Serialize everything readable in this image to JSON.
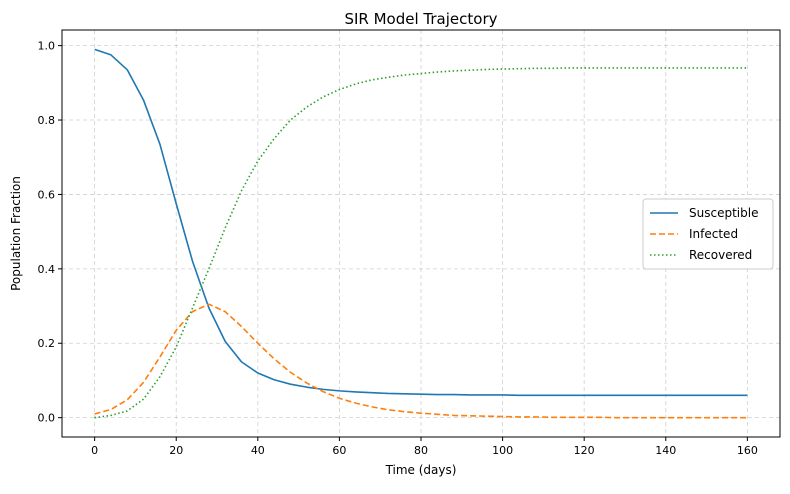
{
  "chart_data": {
    "type": "line",
    "title": "SIR Model Trajectory",
    "xlabel": "Time (days)",
    "ylabel": "Population Fraction",
    "xlim": [
      -8,
      168
    ],
    "ylim": [
      -0.052,
      1.042
    ],
    "xticks": [
      0,
      20,
      40,
      60,
      80,
      100,
      120,
      140,
      160
    ],
    "yticks": [
      0.0,
      0.2,
      0.4,
      0.6,
      0.8,
      1.0
    ],
    "xtick_labels": [
      "0",
      "20",
      "40",
      "60",
      "80",
      "100",
      "120",
      "140",
      "160"
    ],
    "ytick_labels": [
      "0.0",
      "0.2",
      "0.4",
      "0.6",
      "0.8",
      "1.0"
    ],
    "grid": true,
    "legend_position": "center-right",
    "x": [
      0,
      4,
      8,
      12,
      16,
      20,
      24,
      28,
      32,
      36,
      40,
      44,
      48,
      52,
      56,
      60,
      64,
      68,
      72,
      76,
      80,
      84,
      88,
      92,
      96,
      100,
      104,
      108,
      112,
      116,
      120,
      124,
      128,
      132,
      136,
      140,
      144,
      148,
      152,
      156,
      160
    ],
    "series": [
      {
        "name": "Susceptible",
        "color": "#1f77b4",
        "dash": "solid",
        "values": [
          0.99,
          0.975,
          0.935,
          0.853,
          0.735,
          0.575,
          0.42,
          0.295,
          0.205,
          0.15,
          0.12,
          0.102,
          0.09,
          0.082,
          0.076,
          0.072,
          0.069,
          0.067,
          0.065,
          0.064,
          0.063,
          0.062,
          0.062,
          0.061,
          0.061,
          0.061,
          0.06,
          0.06,
          0.06,
          0.06,
          0.06,
          0.06,
          0.06,
          0.06,
          0.06,
          0.06,
          0.06,
          0.06,
          0.06,
          0.06,
          0.06
        ]
      },
      {
        "name": "Infected",
        "color": "#ff7f0e",
        "dash": "dashed",
        "values": [
          0.01,
          0.022,
          0.048,
          0.095,
          0.163,
          0.235,
          0.285,
          0.305,
          0.285,
          0.245,
          0.2,
          0.158,
          0.122,
          0.093,
          0.07,
          0.052,
          0.039,
          0.029,
          0.021,
          0.016,
          0.012,
          0.009,
          0.006,
          0.005,
          0.004,
          0.003,
          0.002,
          0.002,
          0.001,
          0.001,
          0.001,
          0.001,
          0.0,
          0.0,
          0.0,
          0.0,
          0.0,
          0.0,
          0.0,
          0.0,
          0.0
        ]
      },
      {
        "name": "Recovered",
        "color": "#2ca02c",
        "dash": "dotted",
        "values": [
          0.0,
          0.006,
          0.018,
          0.05,
          0.11,
          0.19,
          0.295,
          0.4,
          0.51,
          0.61,
          0.69,
          0.75,
          0.8,
          0.835,
          0.862,
          0.882,
          0.897,
          0.908,
          0.915,
          0.921,
          0.925,
          0.929,
          0.932,
          0.934,
          0.936,
          0.937,
          0.938,
          0.939,
          0.939,
          0.94,
          0.94,
          0.94,
          0.94,
          0.94,
          0.94,
          0.94,
          0.94,
          0.94,
          0.94,
          0.94,
          0.94
        ]
      }
    ]
  }
}
